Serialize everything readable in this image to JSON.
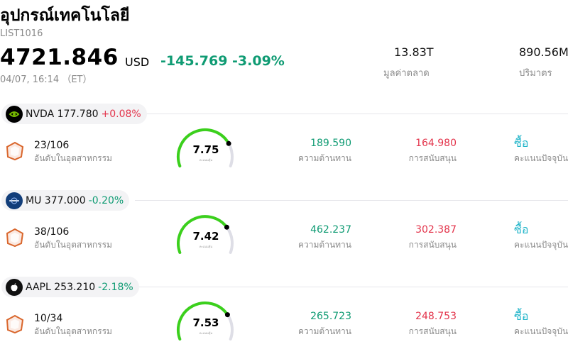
{
  "header": {
    "title": "อุปกรณ์เทคโนโลยี",
    "code": "LIST1016",
    "price": "4721.846",
    "currency": "USD",
    "change": "-145.769 -3.09%",
    "timestamp": "04/07, 16:14 （ET）",
    "market_cap_value": "13.83T",
    "market_cap_label": "มูลค่าตลาด",
    "volume_value": "890.56M",
    "volume_label": "ปริมาตร"
  },
  "colors": {
    "positive_red": "#e3344b",
    "negative_green": "#0f9b73",
    "signal_cyan": "#1fb4c9",
    "gauge_green": "#3bd01c"
  },
  "stocks": [
    {
      "ticker": "NVDA",
      "price": "177.780",
      "pct": "+0.08%",
      "direction": "up",
      "logo": "nvidia-logo",
      "rank": "23/106",
      "rank_label": "อันดับในอุตสาหกรรม",
      "score": "7.75",
      "score_fraction": 0.775,
      "score_label": "คะแนนหุ้น",
      "resistance": "189.590",
      "resistance_label": "ความต้านทาน",
      "support": "164.980",
      "support_label": "การสนับสนุน",
      "signal": "ซื้อ",
      "signal_label": "คะแนนปัจจุบัน"
    },
    {
      "ticker": "MU",
      "price": "377.000",
      "pct": "-0.20%",
      "direction": "down",
      "logo": "micron-logo",
      "rank": "38/106",
      "rank_label": "อันดับในอุตสาหกรรม",
      "score": "7.42",
      "score_fraction": 0.742,
      "score_label": "คะแนนหุ้น",
      "resistance": "462.237",
      "resistance_label": "ความต้านทาน",
      "support": "302.387",
      "support_label": "การสนับสนุน",
      "signal": "ซื้อ",
      "signal_label": "คะแนนปัจจุบัน"
    },
    {
      "ticker": "AAPL",
      "price": "253.210",
      "pct": "-2.18%",
      "direction": "down",
      "logo": "apple-logo",
      "rank": "10/34",
      "rank_label": "อันดับในอุตสาหกรรม",
      "score": "7.53",
      "score_fraction": 0.753,
      "score_label": "คะแนนหุ้น",
      "resistance": "265.723",
      "resistance_label": "ความต้านทาน",
      "support": "248.753",
      "support_label": "การสนับสนุน",
      "signal": "ซื้อ",
      "signal_label": "คะแนนปัจจุบัน"
    }
  ]
}
